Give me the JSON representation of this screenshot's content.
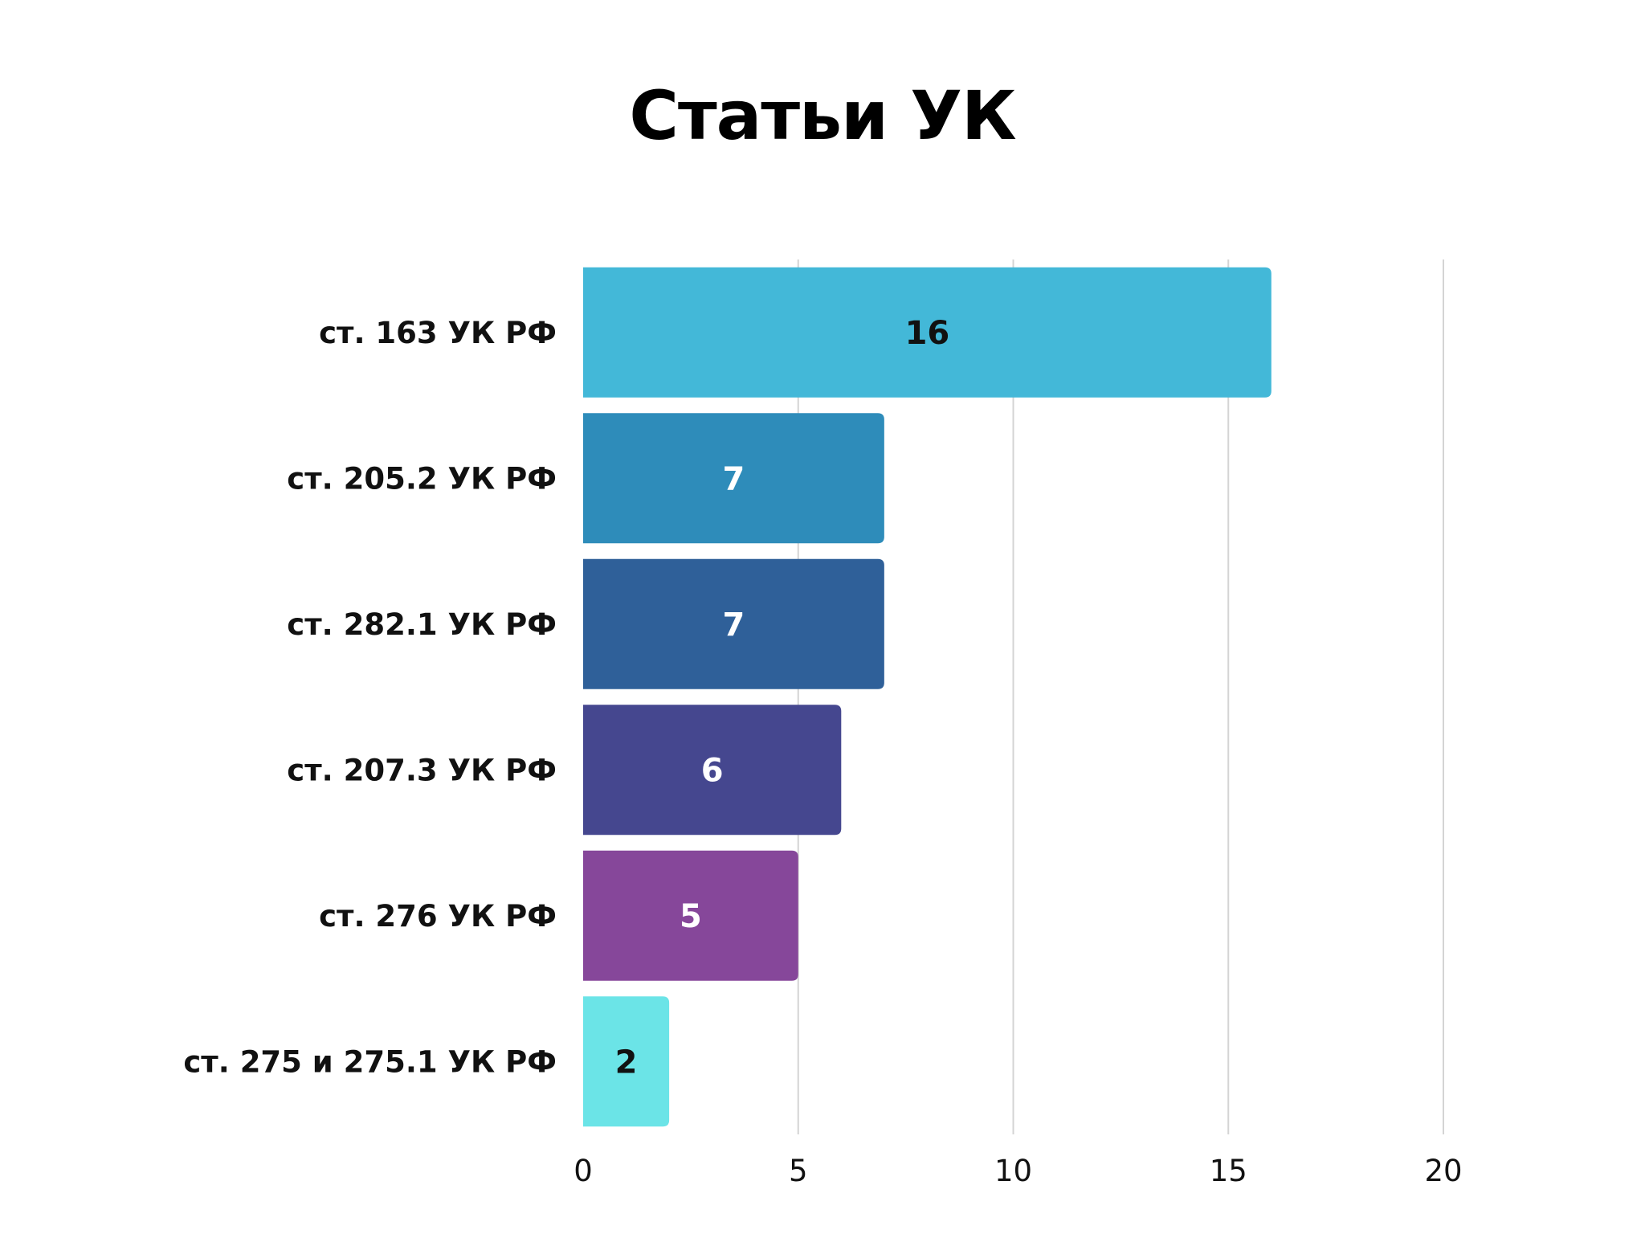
{
  "chart_data": {
    "type": "bar",
    "orientation": "horizontal",
    "title": "Статьи УК",
    "categories": [
      "ст. 163 УК РФ",
      "ст. 205.2 УК РФ",
      "ст. 282.1 УК РФ",
      "ст. 207.3 УК РФ",
      "ст. 276 УК РФ",
      "ст. 275 и 275.1 УК РФ"
    ],
    "values": [
      16,
      7,
      7,
      6,
      5,
      2
    ],
    "colors": [
      "#43b8d8",
      "#2e8cba",
      "#2f6099",
      "#45478f",
      "#86479a",
      "#6be4e7"
    ],
    "label_colors": [
      "#111111",
      "#ffffff",
      "#ffffff",
      "#ffffff",
      "#ffffff",
      "#111111"
    ],
    "xlim": [
      0,
      20
    ],
    "xticks": [
      0,
      5,
      10,
      15,
      20
    ],
    "grid": true,
    "data_labels": true,
    "legend": false
  }
}
